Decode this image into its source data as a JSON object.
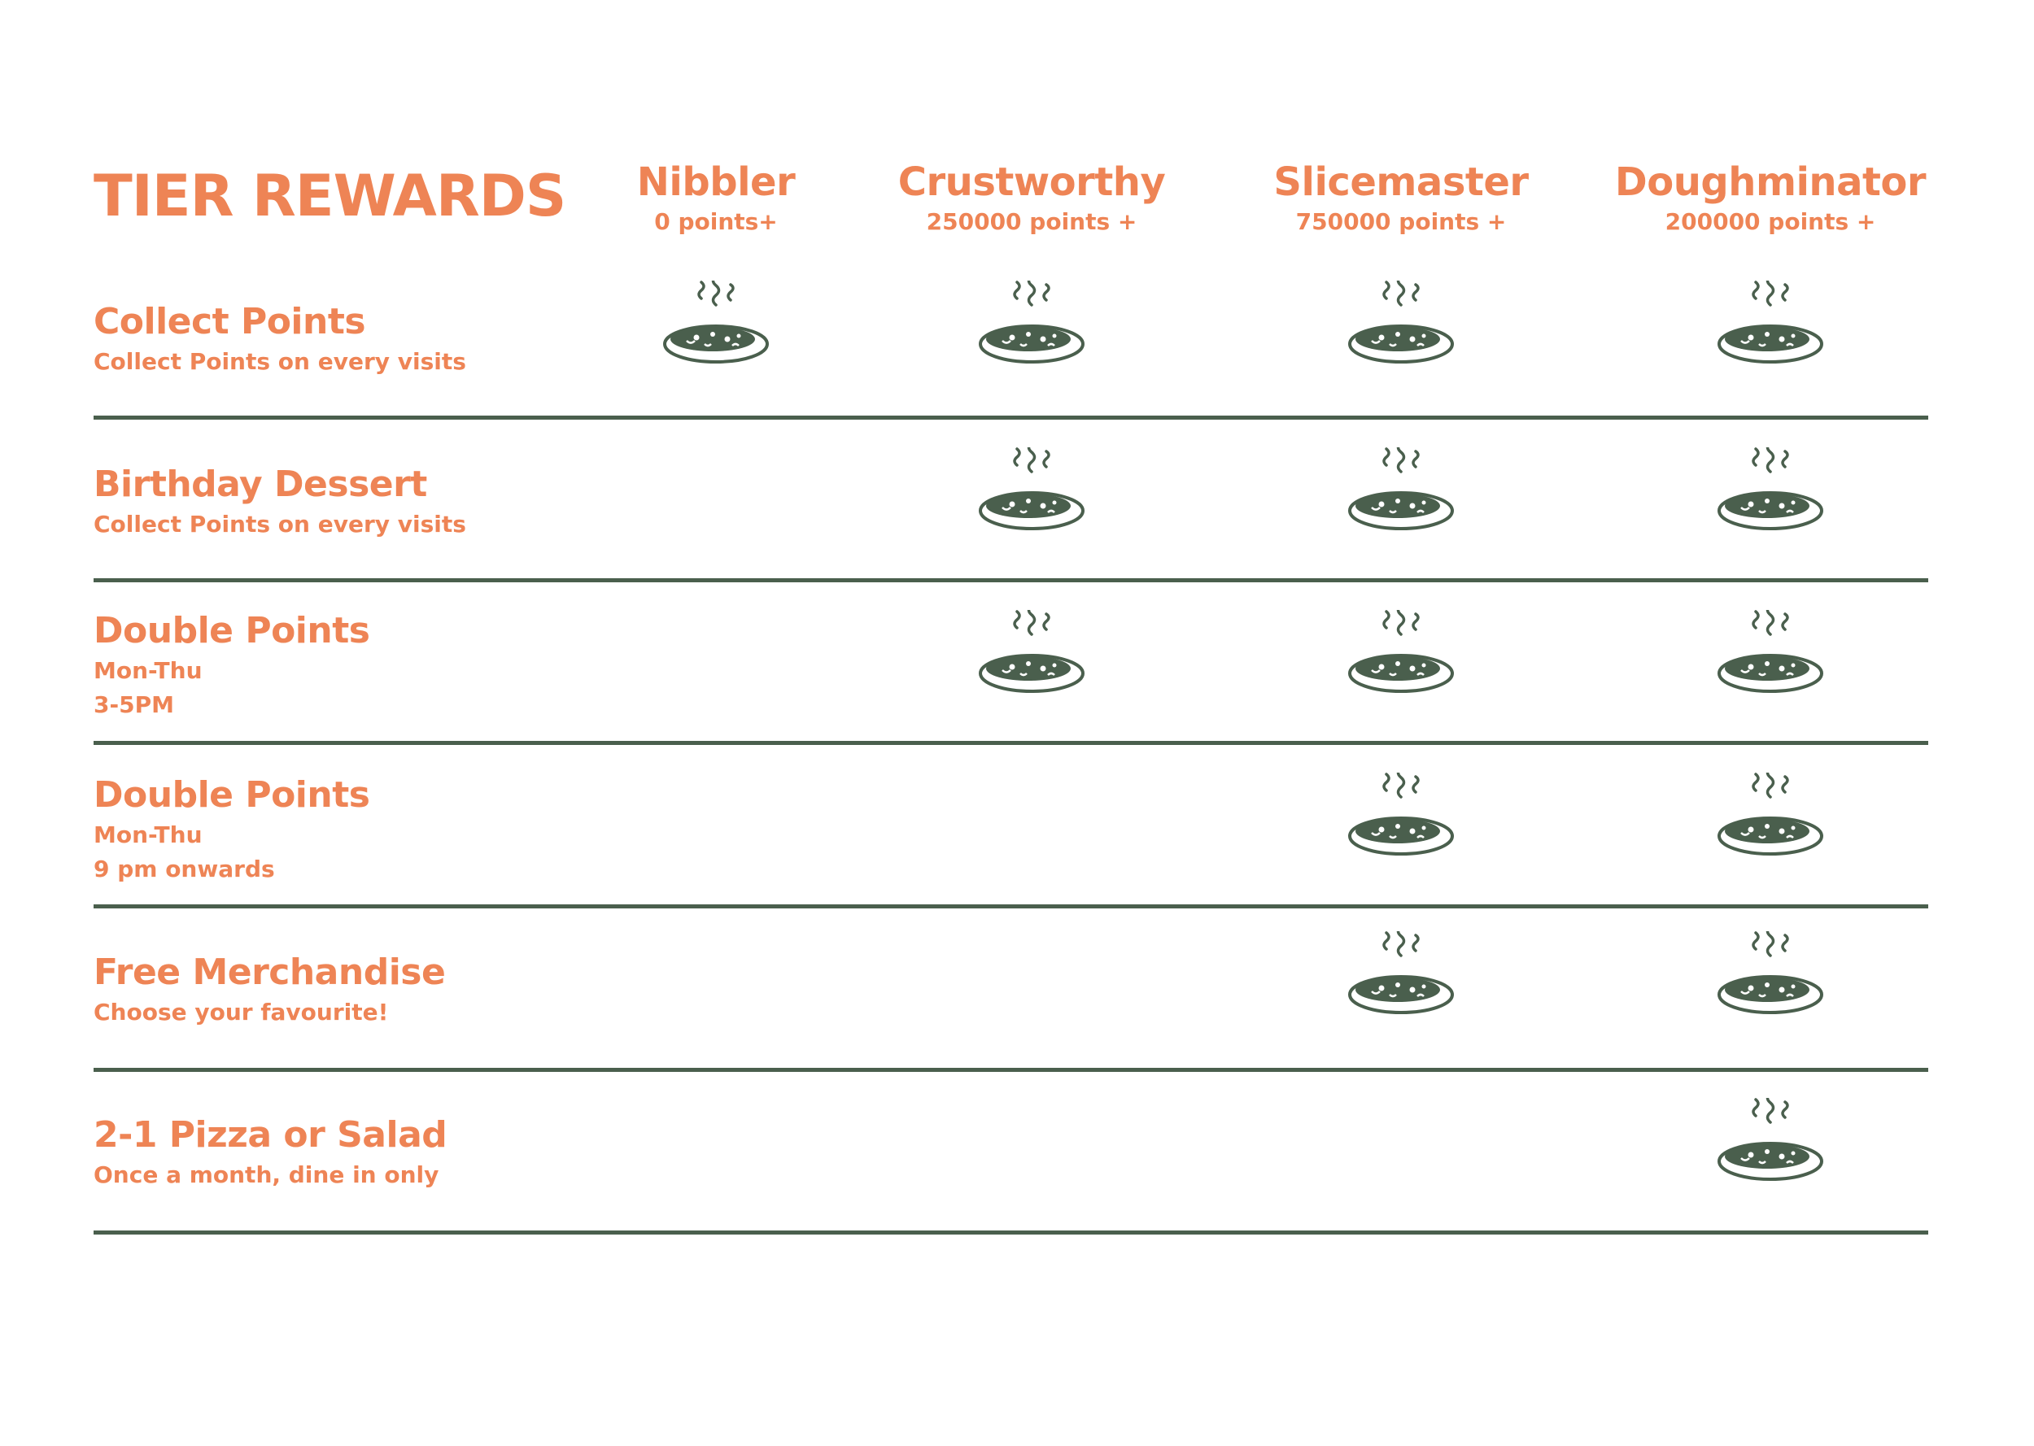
{
  "title": "TIER REWARDS",
  "colors": {
    "accent": "#ee8455",
    "dark": "#4a5f4d",
    "background": "#ffffff"
  },
  "tiers": [
    {
      "name": "Nibbler",
      "points": "0 points+"
    },
    {
      "name": "Crustworthy",
      "points": "250000 points +"
    },
    {
      "name": "Slicemaster",
      "points": "750000 points +"
    },
    {
      "name": "Doughminator",
      "points": "200000 points +"
    }
  ],
  "rewards": [
    {
      "title": "Collect Points",
      "lines": [
        "Collect Points on every visits"
      ],
      "tiers": [
        true,
        true,
        true,
        true
      ]
    },
    {
      "title": "Birthday Dessert",
      "lines": [
        "Collect Points on every visits"
      ],
      "tiers": [
        false,
        true,
        true,
        true
      ]
    },
    {
      "title": "Double Points",
      "lines": [
        "Mon-Thu",
        "3-5PM"
      ],
      "tiers": [
        false,
        true,
        true,
        true
      ]
    },
    {
      "title": "Double Points",
      "lines": [
        "Mon-Thu",
        "9 pm onwards"
      ],
      "tiers": [
        false,
        false,
        true,
        true
      ]
    },
    {
      "title": "Free Merchandise",
      "lines": [
        "Choose your favourite!"
      ],
      "tiers": [
        false,
        false,
        true,
        true
      ]
    },
    {
      "title": "2-1 Pizza or Salad",
      "lines": [
        "Once a month, dine in only"
      ],
      "tiers": [
        false,
        false,
        false,
        true
      ]
    }
  ],
  "icon": "hot-pizza-icon"
}
